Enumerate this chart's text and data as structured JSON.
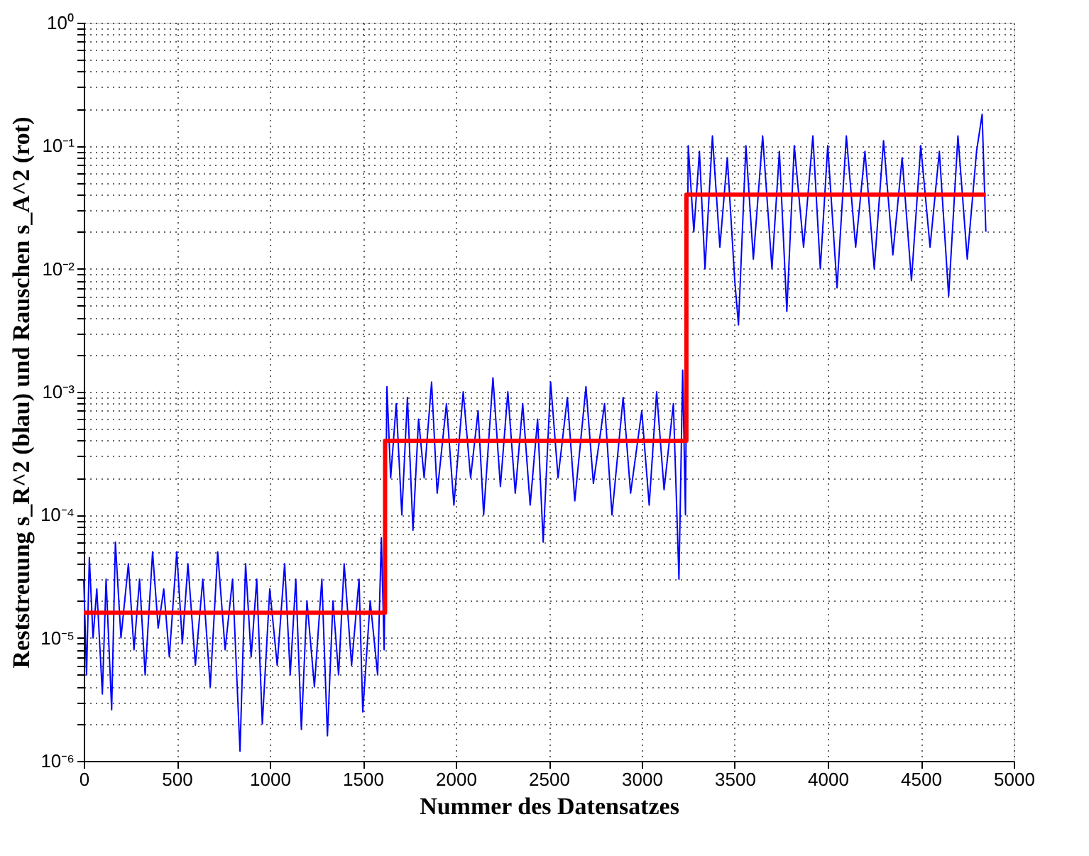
{
  "chart_data": {
    "type": "line",
    "xlabel": "Nummer des Datensatzes",
    "ylabel": "Reststreuung s_R^2 (blau) und Rauschen s_A^2 (rot)",
    "log": "y",
    "grid": true,
    "marker": "none",
    "line_style": "solid",
    "xlim": [
      0,
      5000
    ],
    "xticks": [
      0,
      500,
      1000,
      1500,
      2000,
      2500,
      3000,
      3500,
      4000,
      4500,
      5000
    ],
    "ylim": [
      1e-06,
      1
    ],
    "yticks": [
      {
        "value": 1e-06,
        "label": "10⁻⁶"
      },
      {
        "value": 1e-05,
        "label": "10⁻⁵"
      },
      {
        "value": 0.0001,
        "label": "10⁻⁴"
      },
      {
        "value": 0.001,
        "label": "10⁻³"
      },
      {
        "value": 0.01,
        "label": "10⁻²"
      },
      {
        "value": 0.1,
        "label": "10⁻¹"
      },
      {
        "value": 1,
        "label": "10⁰"
      }
    ],
    "series": [
      {
        "color": "#0000ff",
        "x": [
          0,
          15,
          30,
          50,
          70,
          100,
          120,
          150,
          170,
          200,
          240,
          270,
          300,
          330,
          370,
          400,
          430,
          460,
          500,
          530,
          560,
          600,
          640,
          680,
          720,
          760,
          800,
          840,
          870,
          900,
          930,
          960,
          1000,
          1040,
          1080,
          1110,
          1140,
          1170,
          1200,
          1240,
          1280,
          1310,
          1340,
          1370,
          1400,
          1440,
          1480,
          1500,
          1540,
          1580,
          1600,
          1615,
          1630,
          1650,
          1680,
          1710,
          1740,
          1770,
          1800,
          1830,
          1870,
          1900,
          1950,
          1990,
          2040,
          2080,
          2120,
          2150,
          2200,
          2240,
          2280,
          2320,
          2360,
          2400,
          2440,
          2470,
          2510,
          2550,
          2600,
          2640,
          2700,
          2740,
          2800,
          2840,
          2900,
          2940,
          3000,
          3040,
          3080,
          3120,
          3170,
          3200,
          3220,
          3235,
          3250,
          3280,
          3310,
          3340,
          3380,
          3420,
          3460,
          3500,
          3520,
          3560,
          3600,
          3650,
          3700,
          3740,
          3780,
          3820,
          3870,
          3920,
          3960,
          4000,
          4050,
          4100,
          4150,
          4200,
          4250,
          4300,
          4350,
          4400,
          4450,
          4500,
          4550,
          4600,
          4650,
          4700,
          4750,
          4800,
          4830,
          4850
        ],
        "values": [
          3e-05,
          5e-06,
          4.5e-05,
          1e-05,
          2.5e-05,
          3.5e-06,
          3e-05,
          2.6e-06,
          6e-05,
          1e-05,
          4e-05,
          8e-06,
          3e-05,
          5e-06,
          5e-05,
          1.2e-05,
          2.5e-05,
          7e-06,
          5e-05,
          9e-06,
          4e-05,
          6e-06,
          3e-05,
          4e-06,
          5e-05,
          8e-06,
          3e-05,
          1.2e-06,
          4e-05,
          7e-06,
          3e-05,
          2e-06,
          2.5e-05,
          6e-06,
          4e-05,
          5e-06,
          3e-05,
          1.8e-06,
          2e-05,
          4e-06,
          3e-05,
          1.6e-06,
          2e-05,
          5e-06,
          4e-05,
          6e-06,
          3e-05,
          2.5e-06,
          2e-05,
          5e-06,
          6.5e-05,
          8e-06,
          0.0011,
          0.0002,
          0.0008,
          0.0001,
          0.0009,
          7.5e-05,
          0.0006,
          0.0002,
          0.0012,
          0.00015,
          0.0008,
          0.00012,
          0.001,
          0.0002,
          0.0007,
          0.0001,
          0.0013,
          0.00017,
          0.001,
          0.00015,
          0.0008,
          0.00012,
          0.0006,
          6e-05,
          0.0012,
          0.0002,
          0.0009,
          0.00013,
          0.0011,
          0.00018,
          0.0008,
          0.0001,
          0.0009,
          0.00015,
          0.0007,
          0.00012,
          0.001,
          0.00016,
          0.0008,
          3e-05,
          0.0015,
          0.0001,
          0.1,
          0.02,
          0.09,
          0.01,
          0.12,
          0.015,
          0.08,
          0.008,
          0.0035,
          0.1,
          0.012,
          0.12,
          0.01,
          0.09,
          0.0045,
          0.1,
          0.015,
          0.12,
          0.01,
          0.1,
          0.007,
          0.12,
          0.015,
          0.09,
          0.01,
          0.11,
          0.013,
          0.08,
          0.008,
          0.1,
          0.015,
          0.09,
          0.006,
          0.12,
          0.012,
          0.09,
          0.18,
          0.02
        ]
      },
      {
        "color": "#ff0000",
        "x": [
          0,
          1620,
          1620,
          3240,
          3240,
          4850
        ],
        "values": [
          1.6e-05,
          1.6e-05,
          0.0004,
          0.0004,
          0.04,
          0.04
        ]
      }
    ]
  }
}
